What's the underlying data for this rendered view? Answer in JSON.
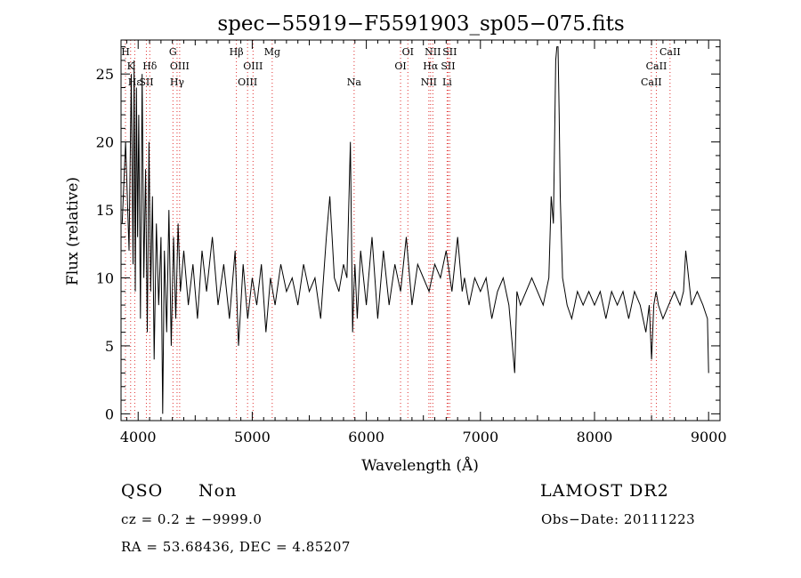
{
  "chart_data": {
    "type": "line",
    "title": "spec−55919−F5591903_sp05−075.fits",
    "xlabel": "Wavelength (Å)",
    "ylabel": "Flux (relative)",
    "xlim": [
      3850,
      9100
    ],
    "ylim": [
      -0.5,
      27.5
    ],
    "xticks": [
      4000,
      5000,
      6000,
      7000,
      8000,
      9000
    ],
    "yticks": [
      0,
      5,
      10,
      15,
      20,
      25
    ],
    "grid": false,
    "series": [
      {
        "x": [
          3860,
          3890,
          3920,
          3940,
          3955,
          3965,
          3975,
          3985,
          3995,
          4005,
          4020,
          4035,
          4050,
          4065,
          4080,
          4095,
          4110,
          4125,
          4140,
          4160,
          4180,
          4200,
          4215,
          4230,
          4250,
          4270,
          4290,
          4310,
          4330,
          4350,
          4370,
          4400,
          4440,
          4480,
          4520,
          4560,
          4600,
          4650,
          4700,
          4750,
          4800,
          4850,
          4880,
          4920,
          4960,
          5000,
          5040,
          5080,
          5120,
          5160,
          5200,
          5250,
          5300,
          5350,
          5400,
          5450,
          5500,
          5550,
          5600,
          5650,
          5680,
          5720,
          5760,
          5800,
          5830,
          5860,
          5880,
          5890,
          5900,
          5920,
          5950,
          6000,
          6050,
          6100,
          6150,
          6200,
          6250,
          6300,
          6350,
          6400,
          6450,
          6500,
          6550,
          6600,
          6650,
          6700,
          6750,
          6800,
          6840,
          6860,
          6900,
          6950,
          7000,
          7050,
          7100,
          7150,
          7200,
          7250,
          7300,
          7320,
          7350,
          7400,
          7450,
          7500,
          7550,
          7600,
          7620,
          7640,
          7660,
          7670,
          7680,
          7690,
          7700,
          7720,
          7740,
          7760,
          7800,
          7850,
          7900,
          7950,
          8000,
          8050,
          8100,
          8150,
          8200,
          8250,
          8300,
          8350,
          8400,
          8450,
          8480,
          8500,
          8520,
          8540,
          8560,
          8600,
          8650,
          8700,
          8750,
          8780,
          8800,
          8850,
          8900,
          8950,
          8990,
          9000
        ],
        "y": [
          14,
          20,
          12,
          25,
          11,
          26,
          9,
          24,
          13,
          22,
          7,
          25,
          10,
          18,
          6,
          20,
          9,
          16,
          4,
          14,
          8,
          13,
          0,
          12,
          6,
          15,
          5,
          13,
          7,
          14,
          9,
          12,
          8,
          11,
          7,
          12,
          9,
          13,
          8,
          11,
          7,
          12,
          5,
          11,
          7,
          10,
          8,
          11,
          6,
          10,
          8,
          11,
          9,
          10,
          8,
          11,
          9,
          10,
          7,
          13,
          16,
          10,
          9,
          11,
          10,
          20,
          6,
          9,
          11,
          7,
          12,
          8,
          13,
          7,
          12,
          8,
          11,
          9,
          13,
          8,
          11,
          10,
          9,
          11,
          10,
          12,
          9,
          13,
          9,
          10,
          8,
          10,
          9,
          10,
          7,
          9,
          10,
          8,
          3,
          9,
          8,
          9,
          10,
          9,
          8,
          10,
          16,
          14,
          26,
          27,
          27,
          22,
          16,
          10,
          9,
          8,
          7,
          9,
          8,
          9,
          8,
          9,
          7,
          9,
          8,
          9,
          7,
          9,
          8,
          6,
          8,
          4,
          8,
          9,
          8,
          7,
          8,
          9,
          8,
          9,
          12,
          8,
          9,
          8,
          7,
          3
        ]
      }
    ],
    "lines": [
      {
        "w": 3889,
        "labels": [
          "H"
        ],
        "row": 0
      },
      {
        "w": 3934,
        "labels": [
          "K"
        ],
        "row": 1
      },
      {
        "w": 3970,
        "labels": [
          "Hε"
        ],
        "row": 2
      },
      {
        "w": 4072,
        "labels": [
          "SII"
        ],
        "row": 2
      },
      {
        "w": 4102,
        "labels": [
          "Hδ"
        ],
        "row": 1
      },
      {
        "w": 4305,
        "labels": [
          "G"
        ],
        "row": 0
      },
      {
        "w": 4341,
        "labels": [
          "Hγ"
        ],
        "row": 2
      },
      {
        "w": 4364,
        "labels": [
          "OIII"
        ],
        "row": 1
      },
      {
        "w": 4861,
        "labels": [
          "Hβ"
        ],
        "row": 0
      },
      {
        "w": 4959,
        "labels": [
          "OIII"
        ],
        "row": 2
      },
      {
        "w": 5007,
        "labels": [
          "OIII"
        ],
        "row": 1
      },
      {
        "w": 5175,
        "labels": [
          "Mg"
        ],
        "row": 0
      },
      {
        "w": 5893,
        "labels": [
          "Na"
        ],
        "row": 2
      },
      {
        "w": 6300,
        "labels": [
          "OI"
        ],
        "row": 1
      },
      {
        "w": 6364,
        "labels": [
          "OI"
        ],
        "row": 0
      },
      {
        "w": 6548,
        "labels": [
          "NII"
        ],
        "row": 2
      },
      {
        "w": 6563,
        "labels": [
          "Hα"
        ],
        "row": 1
      },
      {
        "w": 6583,
        "labels": [
          "NII"
        ],
        "row": 0
      },
      {
        "w": 6708,
        "labels": [
          "Li"
        ],
        "row": 2
      },
      {
        "w": 6717,
        "labels": [
          "SII"
        ],
        "row": 1
      },
      {
        "w": 6731,
        "labels": [
          "SII"
        ],
        "row": 0
      },
      {
        "w": 8498,
        "labels": [
          "CaII"
        ],
        "row": 2
      },
      {
        "w": 8542,
        "labels": [
          "CaII"
        ],
        "row": 1
      },
      {
        "w": 8662,
        "labels": [
          "CaII"
        ],
        "row": 0
      }
    ]
  },
  "info": {
    "class": "QSO",
    "subclass": "Non",
    "survey": "LAMOST DR2",
    "cz": "cz = 0.2 ± −9999.0",
    "obs_date": "Obs−Date: 20111223",
    "radec": "RA =  53.68436, DEC =   4.85207"
  },
  "colors": {
    "axis": "#000000",
    "line": "#000000",
    "marker": "#e03030"
  }
}
